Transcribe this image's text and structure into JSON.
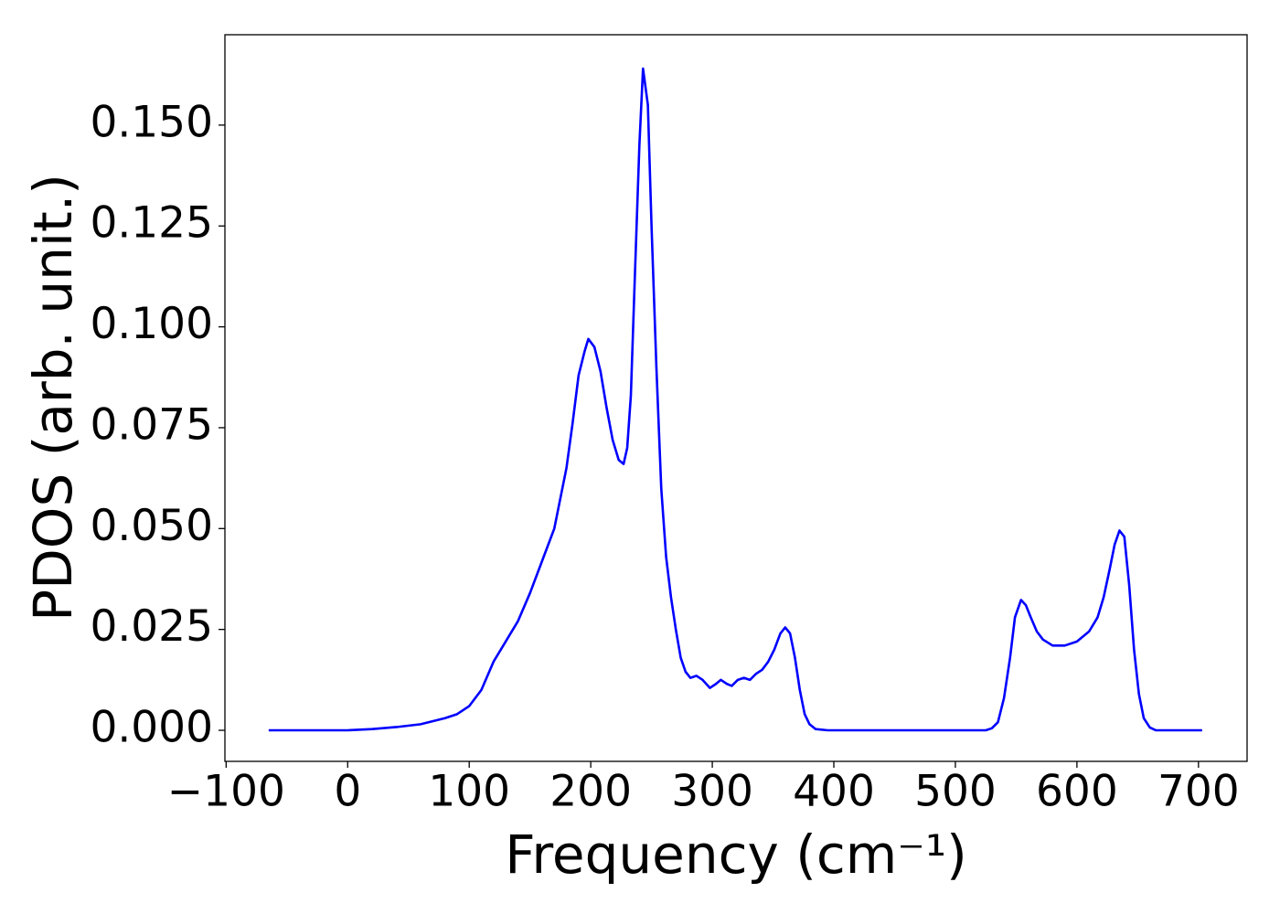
{
  "chart_data": {
    "type": "line",
    "x_label": "Frequency (cm⁻¹)",
    "y_label": "PDOS (arb. unit.)",
    "color": "#0000ff",
    "x": [
      -65,
      0,
      20,
      40,
      60,
      80,
      90,
      100,
      110,
      120,
      130,
      140,
      150,
      160,
      170,
      180,
      185,
      190,
      195,
      198,
      203,
      208,
      213,
      218,
      223,
      227,
      230,
      233,
      236,
      240,
      243,
      247,
      250,
      254,
      258,
      262,
      266,
      270,
      274,
      278,
      282,
      287,
      292,
      298,
      303,
      307,
      312,
      316,
      321,
      326,
      331,
      336,
      341,
      346,
      351,
      356,
      360,
      364,
      368,
      372,
      376,
      380,
      385,
      395,
      450,
      525,
      530,
      535,
      540,
      545,
      549,
      554,
      558,
      562,
      567,
      572,
      580,
      590,
      600,
      610,
      617,
      622,
      627,
      631,
      635,
      639,
      643,
      647,
      651,
      655,
      660,
      665,
      703
    ],
    "values": [
      0,
      0,
      0.0003,
      0.0008,
      0.0015,
      0.003,
      0.004,
      0.006,
      0.01,
      0.017,
      0.022,
      0.027,
      0.034,
      0.042,
      0.05,
      0.065,
      0.076,
      0.088,
      0.094,
      0.097,
      0.095,
      0.089,
      0.08,
      0.072,
      0.067,
      0.066,
      0.07,
      0.083,
      0.11,
      0.145,
      0.164,
      0.155,
      0.125,
      0.09,
      0.06,
      0.043,
      0.033,
      0.025,
      0.018,
      0.0145,
      0.013,
      0.0135,
      0.0125,
      0.0105,
      0.0115,
      0.0125,
      0.0115,
      0.011,
      0.0125,
      0.013,
      0.0125,
      0.014,
      0.015,
      0.017,
      0.02,
      0.024,
      0.0255,
      0.024,
      0.018,
      0.01,
      0.004,
      0.0015,
      0.0003,
      0,
      0,
      0,
      0.0005,
      0.002,
      0.008,
      0.018,
      0.028,
      0.0323,
      0.031,
      0.028,
      0.0245,
      0.0225,
      0.021,
      0.021,
      0.022,
      0.0245,
      0.028,
      0.033,
      0.04,
      0.046,
      0.0495,
      0.048,
      0.036,
      0.02,
      0.009,
      0.003,
      0.0007,
      0,
      0
    ],
    "xlim": [
      -101,
      740
    ],
    "ylim": [
      -0.0077,
      0.1724
    ],
    "xticks": [
      {
        "value": -100,
        "label": "−100"
      },
      0,
      100,
      200,
      300,
      400,
      500,
      600,
      700
    ],
    "yticks": [
      {
        "value": 0,
        "label": "0.000"
      },
      {
        "value": 0.025,
        "label": "0.025"
      },
      {
        "value": 0.05,
        "label": "0.050"
      },
      {
        "value": 0.075,
        "label": "0.075"
      },
      {
        "value": 0.1,
        "label": "0.100"
      },
      {
        "value": 0.125,
        "label": "0.125"
      },
      {
        "value": 0.15,
        "label": "0.150"
      }
    ]
  }
}
